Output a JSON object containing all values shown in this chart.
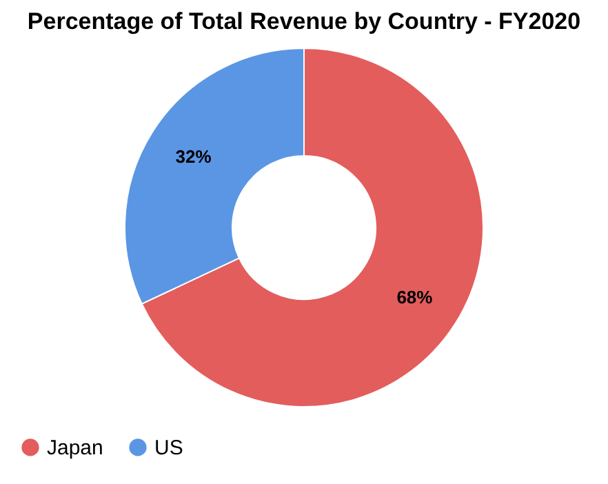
{
  "chart_data": {
    "type": "donut",
    "title": "Percentage of Total Revenue by Country - FY2020",
    "categories": [
      "Japan",
      "US"
    ],
    "values": [
      68,
      32
    ],
    "colors": [
      "#e35d5d",
      "#5b96e4"
    ],
    "value_labels": [
      "68%",
      "32%"
    ],
    "legend": "bottom"
  }
}
